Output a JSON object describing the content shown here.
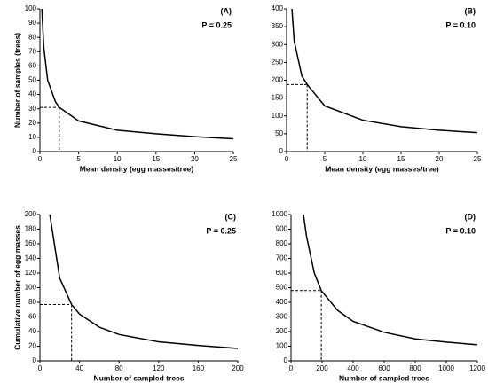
{
  "chart_data": [
    {
      "type": "line",
      "title": "(A)",
      "annotation": "P = 0.25",
      "xlabel": "Mean density (egg masses/tree)",
      "ylabel": "Number of samples (trees)",
      "color": "#000000",
      "x": [
        0.25,
        0.5,
        1,
        2,
        2.5,
        5,
        10,
        15,
        20,
        25
      ],
      "values": [
        100,
        73,
        50,
        35,
        31,
        21.5,
        15,
        12.5,
        10.5,
        9
      ],
      "xlim": [
        0,
        25
      ],
      "ylim": [
        0,
        100
      ],
      "xticks": [
        0,
        5,
        10,
        15,
        20,
        25
      ],
      "yticks": [
        0,
        10,
        20,
        30,
        40,
        50,
        60,
        70,
        80,
        90,
        100
      ],
      "reference": {
        "x": 2.5,
        "y": 31
      }
    },
    {
      "type": "line",
      "title": "(B)",
      "annotation": "P = 0.10",
      "xlabel": "Mean density (egg masses/tree)",
      "color": "#000000",
      "x": [
        0.7,
        1,
        2,
        2.7,
        5,
        10,
        15,
        20,
        25
      ],
      "values": [
        400,
        310,
        212,
        188,
        128,
        88,
        70,
        60,
        53
      ],
      "xlim": [
        0,
        25
      ],
      "ylim": [
        0,
        400
      ],
      "xticks": [
        0,
        5,
        10,
        15,
        20,
        25
      ],
      "yticks": [
        0,
        50,
        100,
        150,
        200,
        250,
        300,
        350,
        400
      ],
      "reference": {
        "x": 2.7,
        "y": 188
      }
    },
    {
      "type": "line",
      "title": "(C)",
      "annotation": "P = 0.25",
      "xlabel": "Number of sampled trees",
      "ylabel": "Cumulative number of egg masses",
      "color": "#000000",
      "x": [
        10,
        20,
        32,
        40,
        60,
        80,
        120,
        160,
        200
      ],
      "values": [
        200,
        113,
        77,
        64,
        46,
        36,
        26,
        21,
        17
      ],
      "xlim": [
        0,
        200
      ],
      "ylim": [
        0,
        200
      ],
      "xticks": [
        0,
        40,
        80,
        120,
        160,
        200
      ],
      "yticks": [
        0,
        20,
        40,
        60,
        80,
        100,
        120,
        140,
        160,
        180,
        200
      ],
      "reference": {
        "x": 32,
        "y": 77
      }
    },
    {
      "type": "line",
      "title": "(D)",
      "annotation": "P = 0.10",
      "xlabel": "Number of sampled trees",
      "color": "#000000",
      "x": [
        80,
        100,
        150,
        195,
        300,
        400,
        600,
        800,
        1000,
        1200
      ],
      "values": [
        1000,
        850,
        600,
        480,
        345,
        270,
        195,
        150,
        128,
        110
      ],
      "xlim": [
        0,
        1200
      ],
      "ylim": [
        0,
        1000
      ],
      "xticks": [
        0,
        200,
        400,
        600,
        800,
        1000,
        1200
      ],
      "yticks": [
        0,
        100,
        200,
        300,
        400,
        500,
        600,
        700,
        800,
        900,
        1000
      ],
      "reference": {
        "x": 195,
        "y": 480
      }
    }
  ]
}
